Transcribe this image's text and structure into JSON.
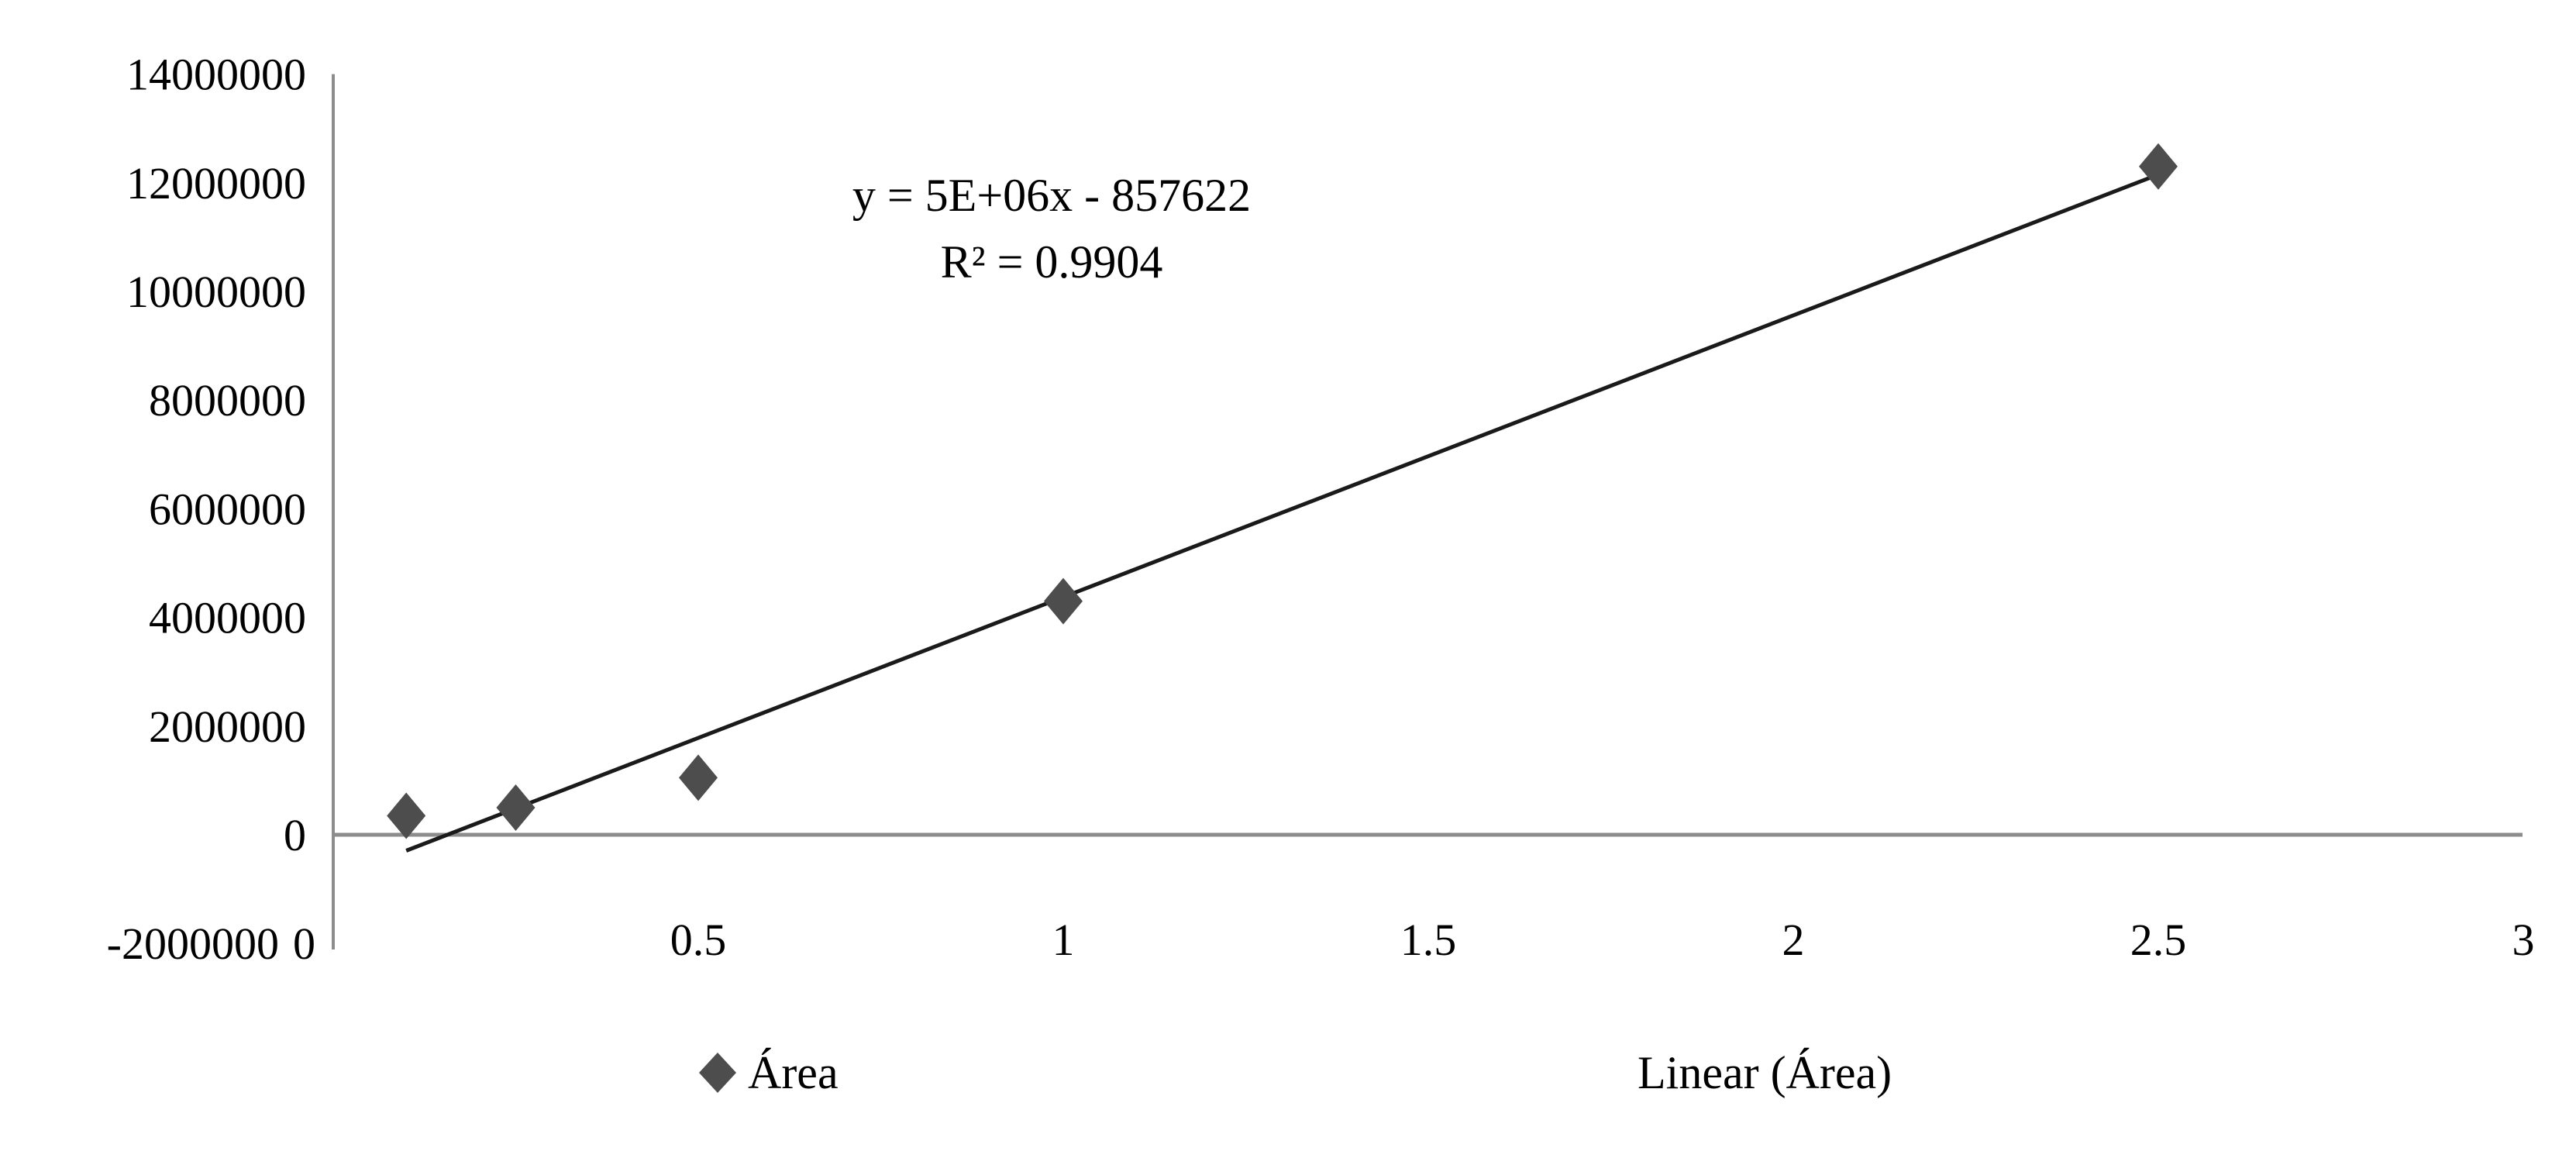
{
  "chart_data": {
    "type": "scatter",
    "title": "",
    "xlabel": "",
    "ylabel": "",
    "xlim": [
      0,
      3
    ],
    "ylim": [
      -2000000,
      14000000
    ],
    "x_ticks": [
      "0",
      "0.5",
      "1",
      "1.5",
      "2",
      "2.5",
      "3"
    ],
    "x_tick_values": [
      0,
      0.5,
      1,
      1.5,
      2,
      2.5,
      3
    ],
    "y_ticks": [
      "14000000",
      "12000000",
      "10000000",
      "8000000",
      "6000000",
      "4000000",
      "2000000",
      "0",
      "-2000000"
    ],
    "y_tick_values": [
      14000000,
      12000000,
      10000000,
      8000000,
      6000000,
      4000000,
      2000000,
      0,
      -2000000
    ],
    "grid": false,
    "series": [
      {
        "name": "Área",
        "marker": "diamond",
        "color": "#4d4d4d",
        "x": [
          0.1,
          0.25,
          0.5,
          1,
          2.5
        ],
        "y": [
          350000,
          500000,
          1050000,
          4300000,
          12300000
        ]
      }
    ],
    "trendline": {
      "name": "Linear (Área)",
      "type": "linear",
      "color": "#1a1a1a",
      "equation": "y = 5E+06x - 857622",
      "r_squared": "R² = 0.9904"
    },
    "legend": {
      "placement": "bottom",
      "items": [
        "Área",
        "Linear (Área)"
      ]
    }
  }
}
